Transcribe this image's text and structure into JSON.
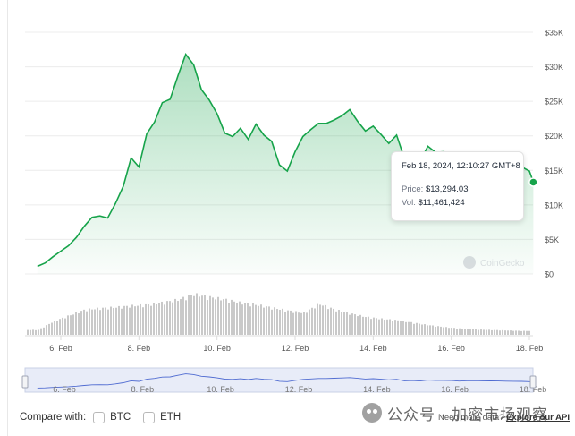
{
  "chart_data": {
    "type": "area",
    "title": "",
    "xlabel": "",
    "ylabel": "",
    "y_axis_position": "right",
    "yticks": [
      "$35K",
      "$30K",
      "$25K",
      "$20K",
      "$15K",
      "$10K",
      "$5K",
      "$0"
    ],
    "ylim": [
      0,
      35000
    ],
    "xticks": [
      "6. Feb",
      "8. Feb",
      "10. Feb",
      "12. Feb",
      "14. Feb",
      "16. Feb",
      "18. Feb"
    ],
    "grid": true,
    "line_color": "#16a34a",
    "fill_color": "#16a34a",
    "volume_color": "#c9c9c9",
    "series": [
      {
        "x_day": [
          5.4,
          5.6,
          5.8,
          6.0,
          6.2,
          6.4,
          6.6,
          6.8,
          7.0,
          7.2,
          7.4,
          7.6,
          7.8,
          8.0,
          8.2,
          8.4,
          8.6,
          8.8,
          9.0,
          9.2,
          9.4,
          9.6,
          9.8,
          10.0,
          10.2,
          10.4,
          10.6,
          10.8,
          11.0,
          11.2,
          11.4,
          11.6,
          11.8,
          12.0,
          12.2,
          12.4,
          12.6,
          12.8,
          13.0,
          13.2,
          13.4,
          13.6,
          13.8,
          14.0,
          14.2,
          14.4,
          14.6,
          14.8,
          15.0,
          15.2,
          15.4,
          15.6,
          15.8,
          16.0,
          16.2,
          16.4,
          16.6,
          16.8,
          17.0,
          17.2,
          17.4,
          17.6,
          17.8,
          18.0,
          18.1
        ],
        "values": [
          1100,
          1600,
          2500,
          3300,
          4100,
          5300,
          6900,
          8200,
          8400,
          8100,
          10200,
          12700,
          16800,
          15500,
          20300,
          22000,
          24800,
          25300,
          28700,
          31800,
          30300,
          26700,
          25200,
          23200,
          20400,
          19900,
          21100,
          19500,
          21700,
          20100,
          19200,
          15800,
          14900,
          17700,
          19900,
          20900,
          21800,
          21800,
          22300,
          22900,
          23800,
          22100,
          20700,
          21400,
          20200,
          18900,
          20100,
          16700,
          17400,
          16300,
          18500,
          17600,
          17700,
          17500,
          16200,
          16900,
          17100,
          16800,
          16600,
          16400,
          15900,
          15700,
          15500,
          14900,
          13294
        ]
      },
      {
        "name": "Vol",
        "x_day": [
          5.4,
          5.8,
          6.2,
          6.6,
          7.0,
          7.4,
          7.8,
          8.2,
          8.6,
          9.0,
          9.4,
          9.8,
          10.2,
          10.6,
          11.0,
          11.4,
          11.8,
          12.2,
          12.6,
          13.0,
          13.4,
          13.8,
          14.2,
          14.6,
          15.0,
          15.4,
          15.8,
          16.2,
          16.6,
          17.0,
          17.4,
          17.8,
          18.1
        ],
        "values": [
          10,
          28,
          40,
          52,
          55,
          57,
          60,
          62,
          67,
          73,
          84,
          78,
          73,
          66,
          62,
          56,
          50,
          45,
          64,
          52,
          44,
          37,
          33,
          30,
          25,
          20,
          16,
          13,
          11,
          10,
          9,
          8,
          8
        ]
      }
    ],
    "tooltip": {
      "date": "Feb 18, 2024, 12:10:27 GMT+8",
      "price_label": "Price:",
      "price": "$13,294.03",
      "vol_label": "Vol:",
      "vol": "$11,461,424"
    },
    "chart_watermark": "CoinGecko",
    "navigator": {
      "xticks": [
        "6. Feb",
        "8. Feb",
        "10. Feb",
        "12. Feb",
        "14. Feb",
        "16. Feb",
        "18. Feb"
      ]
    }
  },
  "compare": {
    "label": "Compare with:",
    "options": [
      "BTC",
      "ETH"
    ]
  },
  "footer": {
    "need_more": "Need more data?",
    "api_link": "Explore our API"
  },
  "overlay_watermark": "公众号 · 加密市场观察"
}
